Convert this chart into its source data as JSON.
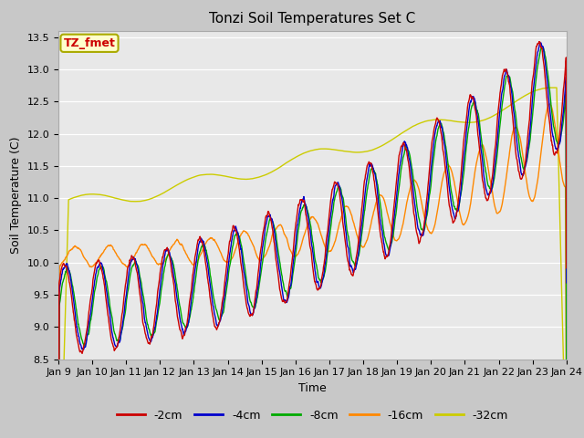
{
  "title": "Tonzi Soil Temperatures Set C",
  "xlabel": "Time",
  "ylabel": "Soil Temperature (C)",
  "ylim": [
    8.5,
    13.6
  ],
  "xlim": [
    0,
    15
  ],
  "plot_bg_color": "#e8e8e8",
  "fig_bg_color": "#c8c8c8",
  "legend_label": "TZ_fmet",
  "legend_bg": "#ffffcc",
  "legend_border": "#aaaa00",
  "series_colors": {
    "-2cm": "#cc0000",
    "-4cm": "#0000cc",
    "-8cm": "#00aa00",
    "-16cm": "#ff8800",
    "-32cm": "#cccc00"
  },
  "x_tick_labels": [
    "Jan 9",
    "Jan 10",
    "Jan 11",
    "Jan 12",
    "Jan 13",
    "Jan 14",
    "Jan 15",
    "Jan 16",
    "Jan 17",
    "Jan 18",
    "Jan 19",
    "Jan 20",
    "Jan 21",
    "Jan 22",
    "Jan 23",
    "Jan 24"
  ],
  "title_fontsize": 11,
  "axis_label_fontsize": 9,
  "tick_fontsize": 8
}
